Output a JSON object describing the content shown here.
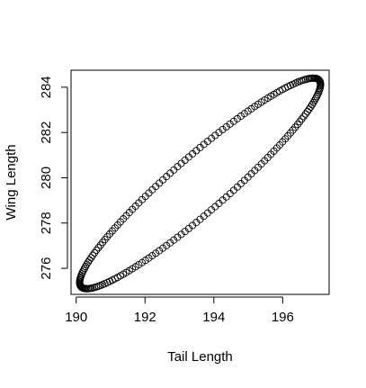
{
  "chart_data": {
    "type": "scatter",
    "title": "",
    "xlabel": "Tail Length",
    "ylabel": "Wing Length",
    "xlim": [
      189.85,
      197.35
    ],
    "ylim": [
      274.85,
      284.75
    ],
    "x_ticks": [
      190,
      192,
      194,
      196
    ],
    "y_ticks": [
      276,
      278,
      280,
      282,
      284
    ],
    "x_tick_labels": [
      "190",
      "192",
      "194",
      "196"
    ],
    "y_tick_labels": [
      "276",
      "278",
      "280",
      "282",
      "284"
    ],
    "grid": false,
    "legend": "none",
    "marker": "open-circle",
    "color": "#000000",
    "series": [
      {
        "description": "points forming a tilted ellipse",
        "center": [
          193.6,
          279.75
        ],
        "x_range": [
          190.1,
          197.1
        ],
        "y_range": [
          275.1,
          284.4
        ],
        "point_count": 200
      }
    ]
  }
}
